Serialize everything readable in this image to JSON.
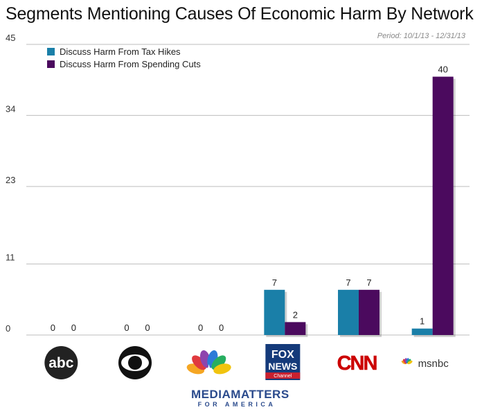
{
  "header": {
    "title": "Segments Mentioning Causes Of Economic Harm By Network",
    "period": "Period: 10/1/13 - 12/31/13"
  },
  "footer": {
    "logo_main": "MEDIAMATTERS",
    "logo_sub": "FOR AMERICA"
  },
  "chart_data": {
    "type": "bar",
    "title": "Segments Mentioning Causes Of Economic Harm By Network",
    "categories": [
      "abc",
      "CBS",
      "NBC",
      "FOX NEWS Channel",
      "CNN",
      "msnbc"
    ],
    "series": [
      {
        "name": "Discuss Harm From Tax Hikes",
        "color": "#1a7fa8",
        "values": [
          0,
          0,
          0,
          7,
          7,
          1
        ]
      },
      {
        "name": "Discuss Harm From Spending Cuts",
        "color": "#4b0a5e",
        "values": [
          0,
          0,
          0,
          2,
          7,
          40
        ]
      }
    ],
    "yticks": [
      "0",
      "11",
      "23",
      "34",
      "45"
    ],
    "ylim": [
      0,
      45
    ],
    "grid": true,
    "legend_position": "top-left",
    "xlabel": "",
    "ylabel": ""
  }
}
